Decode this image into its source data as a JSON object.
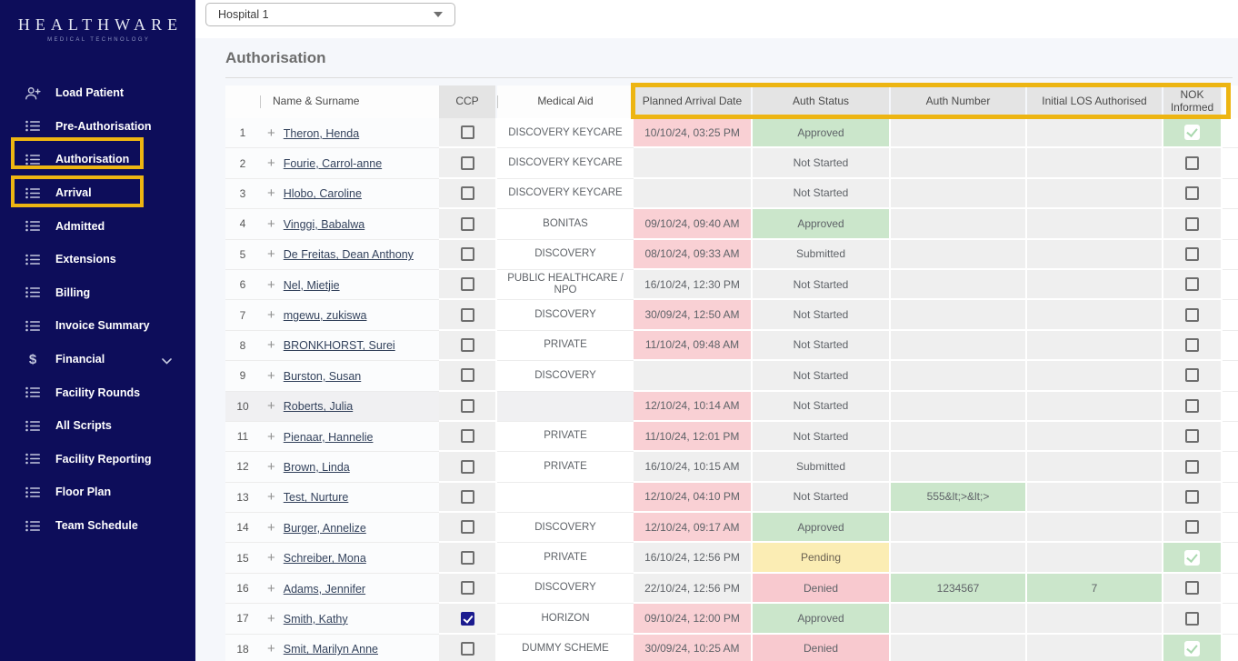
{
  "brand": {
    "name": "HEALTHWARE",
    "tagline": "MEDICAL TECHNOLOGY"
  },
  "topbar": {
    "facility": "Hospital 1"
  },
  "page": {
    "title": "Authorisation"
  },
  "sidebar": {
    "items": [
      {
        "label": "Load Patient",
        "icon": "person-add-icon",
        "highlighted": false,
        "expandable": false
      },
      {
        "label": "Pre-Authorisation",
        "icon": "list-icon",
        "highlighted": false,
        "expandable": false
      },
      {
        "label": "Authorisation",
        "icon": "list-icon",
        "highlighted": true,
        "expandable": false
      },
      {
        "label": "Arrival",
        "icon": "list-icon",
        "highlighted": true,
        "expandable": false
      },
      {
        "label": "Admitted",
        "icon": "list-icon",
        "highlighted": false,
        "expandable": false
      },
      {
        "label": "Extensions",
        "icon": "list-icon",
        "highlighted": false,
        "expandable": false
      },
      {
        "label": "Billing",
        "icon": "list-icon",
        "highlighted": false,
        "expandable": false
      },
      {
        "label": "Invoice Summary",
        "icon": "list-icon",
        "highlighted": false,
        "expandable": false
      },
      {
        "label": "Financial",
        "icon": "dollar-icon",
        "highlighted": false,
        "expandable": true
      },
      {
        "label": "Facility Rounds",
        "icon": "list-icon",
        "highlighted": false,
        "expandable": false
      },
      {
        "label": "All Scripts",
        "icon": "list-icon",
        "highlighted": false,
        "expandable": false
      },
      {
        "label": "Facility Reporting",
        "icon": "list-icon",
        "highlighted": false,
        "expandable": false
      },
      {
        "label": "Floor Plan",
        "icon": "list-icon",
        "highlighted": false,
        "expandable": false
      },
      {
        "label": "Team Schedule",
        "icon": "list-icon",
        "highlighted": false,
        "expandable": false
      }
    ]
  },
  "table": {
    "columns": [
      {
        "key": "num",
        "label": ""
      },
      {
        "key": "name",
        "label": "Name & Surname"
      },
      {
        "key": "ccp",
        "label": "CCP"
      },
      {
        "key": "medical_aid",
        "label": "Medical Aid"
      },
      {
        "key": "arrival",
        "label": "Planned Arrival Date"
      },
      {
        "key": "status",
        "label": "Auth Status"
      },
      {
        "key": "auth_number",
        "label": "Auth Number"
      },
      {
        "key": "los",
        "label": "Initial LOS Authorised"
      },
      {
        "key": "nok",
        "label": "NOK Informed"
      }
    ],
    "rows": [
      {
        "num": "1",
        "name": "Theron, Henda",
        "ccp": false,
        "medical_aid": "DISCOVERY KEYCARE",
        "arrival": "10/10/24, 03:25 PM",
        "arrival_alert": true,
        "status": "Approved",
        "auth_number": "",
        "los": "",
        "nok": true,
        "highlighted": false
      },
      {
        "num": "2",
        "name": "Fourie, Carrol-anne",
        "ccp": false,
        "medical_aid": "DISCOVERY KEYCARE",
        "arrival": "",
        "arrival_alert": false,
        "status": "Not Started",
        "auth_number": "",
        "los": "",
        "nok": false,
        "highlighted": false
      },
      {
        "num": "3",
        "name": "Hlobo, Caroline",
        "ccp": false,
        "medical_aid": "DISCOVERY KEYCARE",
        "arrival": "",
        "arrival_alert": false,
        "status": "Not Started",
        "auth_number": "",
        "los": "",
        "nok": false,
        "highlighted": false
      },
      {
        "num": "4",
        "name": "Vinggi, Babalwa",
        "ccp": false,
        "medical_aid": "BONITAS",
        "arrival": "09/10/24, 09:40 AM",
        "arrival_alert": true,
        "status": "Approved",
        "auth_number": "",
        "los": "",
        "nok": false,
        "highlighted": false
      },
      {
        "num": "5",
        "name": "De Freitas, Dean Anthony",
        "ccp": false,
        "medical_aid": "DISCOVERY",
        "arrival": "08/10/24, 09:33 AM",
        "arrival_alert": true,
        "status": "Submitted",
        "auth_number": "",
        "los": "",
        "nok": false,
        "highlighted": false
      },
      {
        "num": "6",
        "name": "Nel, Mietjie",
        "ccp": false,
        "medical_aid": "PUBLIC HEALTHCARE / NPO",
        "arrival": "16/10/24, 12:30 PM",
        "arrival_alert": false,
        "status": "Not Started",
        "auth_number": "",
        "los": "",
        "nok": false,
        "highlighted": false
      },
      {
        "num": "7",
        "name": "mgewu, zukiswa",
        "ccp": false,
        "medical_aid": "DISCOVERY",
        "arrival": "30/09/24, 12:50 AM",
        "arrival_alert": true,
        "status": "Not Started",
        "auth_number": "",
        "los": "",
        "nok": false,
        "highlighted": false
      },
      {
        "num": "8",
        "name": "BRONKHORST, Surei",
        "ccp": false,
        "medical_aid": "PRIVATE",
        "arrival": "11/10/24, 09:48 AM",
        "arrival_alert": true,
        "status": "Not Started",
        "auth_number": "",
        "los": "",
        "nok": false,
        "highlighted": false
      },
      {
        "num": "9",
        "name": "Burston, Susan",
        "ccp": false,
        "medical_aid": "DISCOVERY",
        "arrival": "",
        "arrival_alert": false,
        "status": "Not Started",
        "auth_number": "",
        "los": "",
        "nok": false,
        "highlighted": false
      },
      {
        "num": "10",
        "name": "Roberts, Julia",
        "ccp": false,
        "medical_aid": "",
        "arrival": "12/10/24, 10:14 AM",
        "arrival_alert": true,
        "status": "Not Started",
        "auth_number": "",
        "los": "",
        "nok": false,
        "highlighted": true
      },
      {
        "num": "11",
        "name": "Pienaar, Hannelie",
        "ccp": false,
        "medical_aid": "PRIVATE",
        "arrival": "11/10/24, 12:01 PM",
        "arrival_alert": true,
        "status": "Not Started",
        "auth_number": "",
        "los": "",
        "nok": false,
        "highlighted": false
      },
      {
        "num": "12",
        "name": "Brown, Linda",
        "ccp": false,
        "medical_aid": "PRIVATE",
        "arrival": "16/10/24, 10:15 AM",
        "arrival_alert": false,
        "status": "Submitted",
        "auth_number": "",
        "los": "",
        "nok": false,
        "highlighted": false
      },
      {
        "num": "13",
        "name": "Test, Nurture",
        "ccp": false,
        "medical_aid": "",
        "arrival": "12/10/24, 04:10 PM",
        "arrival_alert": true,
        "status": "Not Started",
        "auth_number": "555&lt;>&lt;>",
        "los": "",
        "nok": false,
        "highlighted": false
      },
      {
        "num": "14",
        "name": "Burger, Annelize",
        "ccp": false,
        "medical_aid": "DISCOVERY",
        "arrival": "12/10/24, 09:17 AM",
        "arrival_alert": true,
        "status": "Approved",
        "auth_number": "",
        "los": "",
        "nok": false,
        "highlighted": false
      },
      {
        "num": "15",
        "name": "Schreiber, Mona",
        "ccp": false,
        "medical_aid": "PRIVATE",
        "arrival": "16/10/24, 12:56 PM",
        "arrival_alert": false,
        "status": "Pending",
        "auth_number": "",
        "los": "",
        "nok": true,
        "highlighted": false
      },
      {
        "num": "16",
        "name": "Adams, Jennifer",
        "ccp": false,
        "medical_aid": "DISCOVERY",
        "arrival": "22/10/24, 12:56 PM",
        "arrival_alert": false,
        "status": "Denied",
        "auth_number": "1234567",
        "los": "7",
        "nok": false,
        "highlighted": false
      },
      {
        "num": "17",
        "name": "Smith, Kathy",
        "ccp": true,
        "medical_aid": "HORIZON",
        "arrival": "09/10/24, 12:00 PM",
        "arrival_alert": true,
        "status": "Approved",
        "auth_number": "",
        "los": "",
        "nok": false,
        "highlighted": false
      },
      {
        "num": "18",
        "name": "Smit, Marilyn Anne",
        "ccp": false,
        "medical_aid": "DUMMY SCHEME",
        "arrival": "30/09/24, 10:25 AM",
        "arrival_alert": true,
        "status": "Denied",
        "auth_number": "",
        "los": "",
        "nok": true,
        "highlighted": false
      }
    ]
  },
  "colors": {
    "sidebar_navy": "#0d0d5a",
    "annotation_yellow": "#edb512",
    "approved_green": "#cbe6cb",
    "pending_yellow": "#fbedb4",
    "denied_pink": "#f8c9cf",
    "overdue_pink": "#f9d0d4",
    "neutral_gray": "#efefef",
    "ccp_checked_navy": "#1b1b8f"
  }
}
